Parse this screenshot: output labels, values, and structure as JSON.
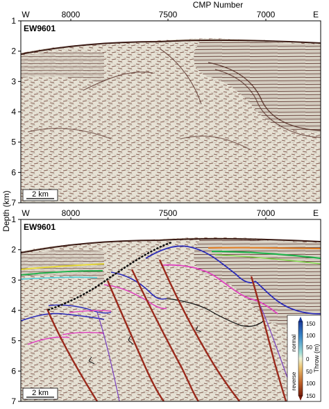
{
  "top_panel": {
    "axis_title": "CMP Number",
    "side_left": "W",
    "side_right": "E",
    "cmp_ticks": [
      "8000",
      "7500",
      "7000"
    ],
    "line_label": "EW9601",
    "scale_label": "2 km"
  },
  "bottom_panel": {
    "side_left": "W",
    "side_right": "E",
    "cmp_ticks": [
      "8000",
      "7500",
      "7000"
    ],
    "line_label": "EW9601",
    "scale_label": "2 km"
  },
  "depth_axis": {
    "label": "Depth (km)",
    "ticks": [
      "1",
      "2",
      "3",
      "4",
      "5",
      "6",
      "7"
    ]
  },
  "colorbar": {
    "title": "Throw (m)",
    "normal_label": "normal",
    "reverse_label": "reverse",
    "ticks": [
      "150",
      "100",
      "50",
      "0",
      "50",
      "100",
      "150"
    ],
    "colors": [
      "#1c3c9c",
      "#3a88c8",
      "#7fd0d8",
      "#e9f0d2",
      "#e8b860",
      "#c0642a",
      "#8a2010"
    ]
  },
  "colors": {
    "seismic_dark": "#5a2a24",
    "seismic_light": "#e8e3d6",
    "fault": "#9a2a1c",
    "thrust_front": "#111111"
  }
}
